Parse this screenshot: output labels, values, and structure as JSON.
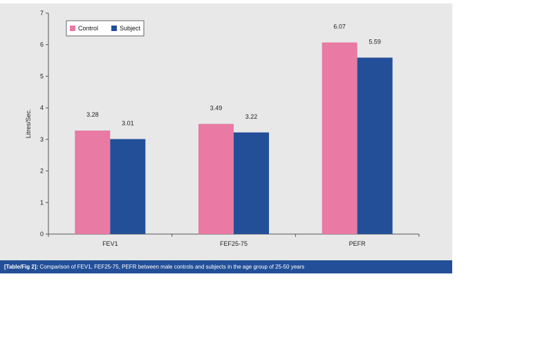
{
  "chart_data": {
    "type": "bar",
    "categories": [
      "FEV1",
      "FEF25-75",
      "PEFR"
    ],
    "series": [
      {
        "name": "Control",
        "values": [
          3.28,
          3.49,
          6.07
        ],
        "color": "#e87aa4"
      },
      {
        "name": "Subject",
        "values": [
          3.01,
          3.22,
          5.59
        ],
        "color": "#234f98"
      }
    ],
    "data_labels": [
      [
        "3.28",
        "3.49",
        "6.07"
      ],
      [
        "3.01",
        "3.22",
        "5.59"
      ]
    ],
    "ylabel": "Litres/Sec.",
    "ylim": [
      0,
      7
    ],
    "yticks": [
      "0",
      "1",
      "2",
      "3",
      "4",
      "5",
      "6",
      "7"
    ],
    "grid": false,
    "legend": {
      "position": "top-left",
      "entries": [
        "Control",
        "Subject"
      ]
    }
  },
  "caption": {
    "lead": "[Table/Fig 2]:",
    "text": "Comparison of FEV1, FEF25-75, PEFR between male controls and subjects in the age group of 25-50 years"
  },
  "colors": {
    "panel_background": "#e8e8e8",
    "caption_background": "#234f98"
  }
}
